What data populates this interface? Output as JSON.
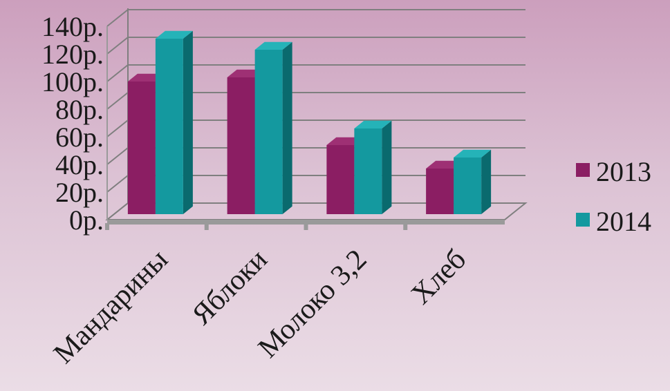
{
  "chart_data": {
    "type": "bar",
    "categories": [
      "Мандарины",
      "Яблоки",
      "Молоко 3,2",
      "Хлеб"
    ],
    "series": [
      {
        "name": "2013",
        "values": [
          96,
          99,
          50,
          33
        ],
        "color": "#8b1e63",
        "top": "#9e3074",
        "side": "#5c0f40"
      },
      {
        "name": "2014",
        "values": [
          127,
          119,
          62,
          41
        ],
        "color": "#14999f",
        "top": "#25b3b8",
        "side": "#0a6a6e"
      }
    ],
    "y_ticks": [
      0,
      20,
      40,
      60,
      80,
      100,
      120,
      140
    ],
    "y_tick_labels": [
      "0р.",
      "20р.",
      "40р.",
      "60р.",
      "80р.",
      "100р.",
      "120р.",
      "140р."
    ],
    "ylim": [
      0,
      140
    ],
    "grid": true,
    "legend_position": "right"
  }
}
